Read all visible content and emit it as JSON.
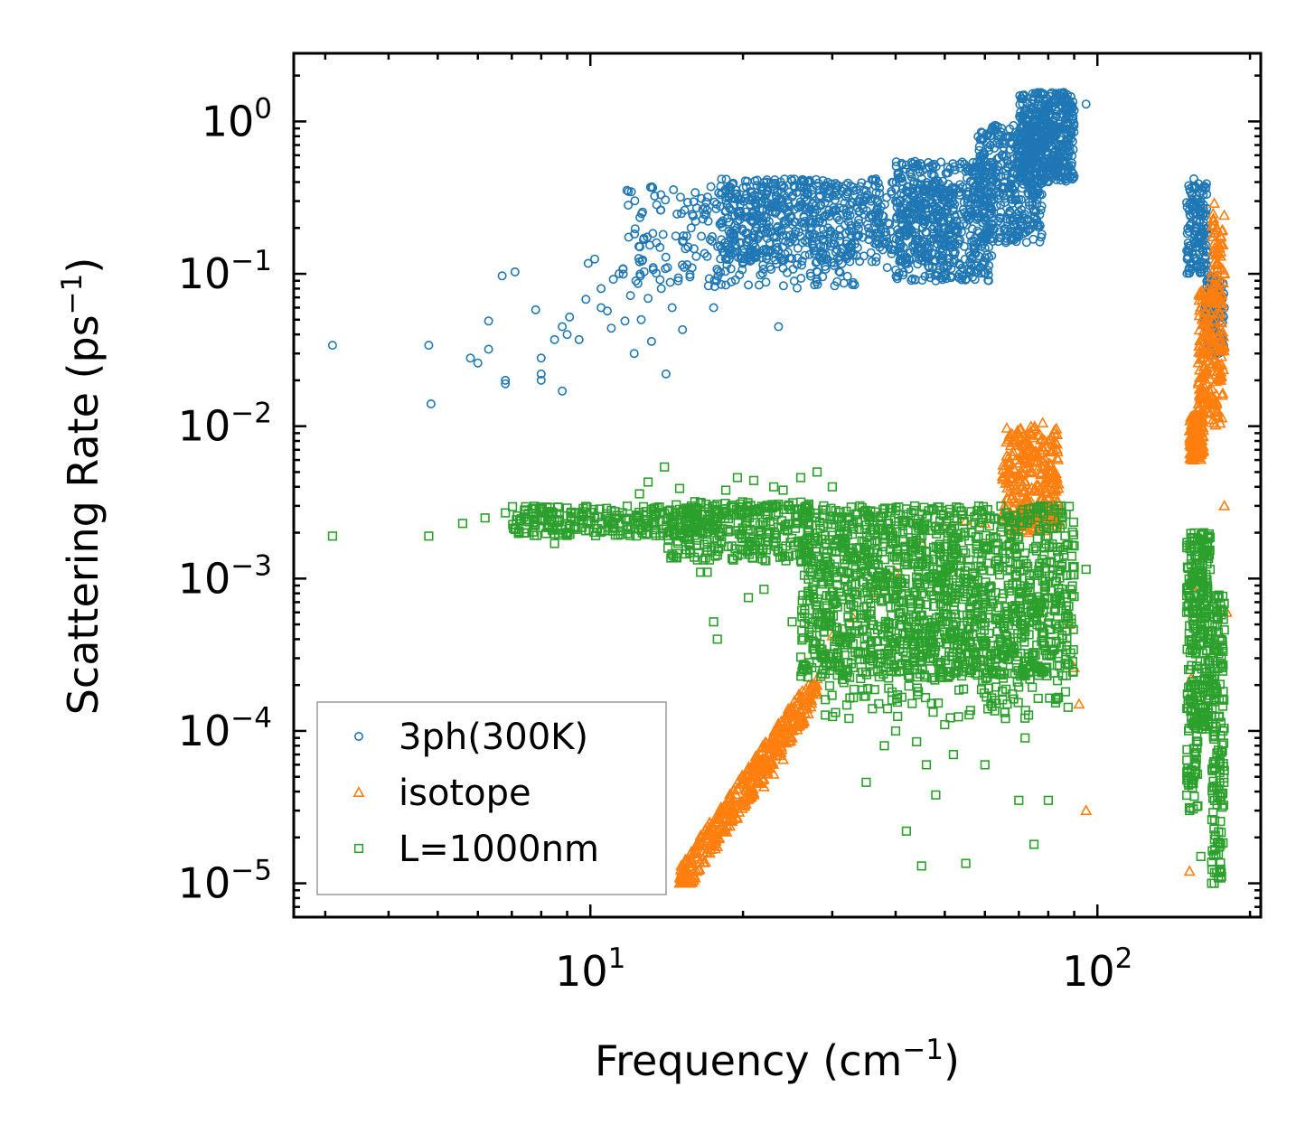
{
  "chart_data": {
    "type": "scatter",
    "title": "",
    "xlabel": "Frequency (cm",
    "xlabel_sup": "−1",
    "xlabel_close": ")",
    "ylabel": "Scattering Rate (ps",
    "ylabel_sup": "−1",
    "ylabel_close": ")",
    "xscale": "log",
    "yscale": "log",
    "xlim": [
      2.6,
      210
    ],
    "ylim": [
      6e-06,
      2.8
    ],
    "x_ticks": [
      {
        "value": 10,
        "base": "10",
        "exp": "1"
      },
      {
        "value": 100,
        "base": "10",
        "exp": "2"
      }
    ],
    "y_ticks": [
      {
        "value": 1,
        "base": "10",
        "exp": "0"
      },
      {
        "value": 0.1,
        "base": "10",
        "exp": "−1"
      },
      {
        "value": 0.01,
        "base": "10",
        "exp": "−2"
      },
      {
        "value": 0.001,
        "base": "10",
        "exp": "−3"
      },
      {
        "value": 0.0001,
        "base": "10",
        "exp": "−4"
      },
      {
        "value": 1e-05,
        "base": "10",
        "exp": "−5"
      }
    ],
    "legend_position": "bottom-left",
    "series": [
      {
        "name": "3ph(300K)",
        "marker": "circle",
        "color": "#1f77b4",
        "points": [
          [
            3.1,
            0.034
          ],
          [
            4.8,
            0.034
          ],
          [
            4.85,
            0.014
          ],
          [
            5.8,
            0.028
          ],
          [
            6.0,
            0.026
          ],
          [
            6.3,
            0.049
          ],
          [
            6.3,
            0.032
          ],
          [
            6.7,
            0.097
          ],
          [
            6.8,
            0.02
          ],
          [
            6.8,
            0.019
          ],
          [
            7.1,
            0.103
          ],
          [
            7.8,
            0.058
          ],
          [
            8.0,
            0.028
          ],
          [
            8.0,
            0.022
          ],
          [
            8.0,
            0.02
          ],
          [
            8.5,
            0.037
          ],
          [
            8.8,
            0.017
          ],
          [
            8.8,
            0.045
          ],
          [
            9.0,
            0.04
          ],
          [
            9.1,
            0.052
          ],
          [
            9.5,
            0.037
          ],
          [
            9.8,
            0.068
          ],
          [
            9.9,
            0.117
          ],
          [
            10.2,
            0.125
          ],
          [
            10.5,
            0.08
          ],
          [
            10.5,
            0.06
          ],
          [
            10.8,
            0.057
          ],
          [
            11.0,
            0.044
          ],
          [
            11.1,
            0.092
          ],
          [
            11.4,
            0.1
          ],
          [
            11.6,
            0.108
          ],
          [
            11.7,
            0.049
          ],
          [
            11.9,
            0.174
          ],
          [
            12.0,
            0.072
          ],
          [
            12.2,
            0.03
          ],
          [
            12.3,
            0.09
          ],
          [
            12.5,
            0.12
          ],
          [
            12.6,
            0.05
          ],
          [
            13.0,
            0.069
          ],
          [
            13.1,
            0.154
          ],
          [
            13.2,
            0.036
          ],
          [
            13.3,
            0.11
          ],
          [
            13.5,
            0.16
          ],
          [
            13.8,
            0.08
          ],
          [
            14.1,
            0.022
          ],
          [
            14.2,
            0.11
          ],
          [
            14.5,
            0.06
          ],
          [
            14.9,
            0.09
          ],
          [
            15.2,
            0.043
          ],
          [
            15.8,
            0.2
          ],
          [
            17.0,
            0.13
          ],
          [
            17.5,
            0.06
          ],
          [
            18.5,
            0.26
          ],
          [
            20.0,
            0.12
          ],
          [
            21.5,
            0.3
          ],
          [
            23.0,
            0.36
          ],
          [
            23.5,
            0.045
          ],
          [
            25.0,
            0.32
          ],
          [
            27.0,
            0.4
          ],
          [
            28.0,
            0.12
          ],
          [
            29.0,
            0.36
          ],
          [
            31.0,
            0.27
          ],
          [
            33.0,
            0.37
          ],
          [
            35.0,
            0.35
          ],
          [
            37.0,
            0.24
          ],
          [
            38.5,
            0.11
          ],
          [
            40.0,
            0.3
          ],
          [
            42.0,
            0.26
          ],
          [
            43.5,
            0.5
          ],
          [
            46.0,
            0.38
          ],
          [
            48.0,
            0.09
          ],
          [
            50.0,
            0.34
          ],
          [
            52.0,
            0.27
          ],
          [
            55.0,
            0.47
          ],
          [
            58.0,
            0.29
          ],
          [
            62.0,
            0.52
          ],
          [
            66.0,
            0.44
          ],
          [
            70.0,
            0.66
          ],
          [
            75.0,
            0.92
          ],
          [
            80.0,
            1.25
          ],
          [
            83.0,
            1.52
          ],
          [
            86.0,
            1.38
          ],
          [
            90.0,
            1.18
          ],
          [
            95.0,
            1.3
          ],
          [
            152.0,
            0.36
          ],
          [
            155.0,
            0.42
          ],
          [
            160.0,
            0.3
          ],
          [
            165.0,
            0.14
          ],
          [
            170.0,
            0.07
          ],
          [
            175.0,
            0.04
          ],
          [
            178.0,
            0.06
          ]
        ],
        "dense_regions": [
          {
            "x": [
              11.5,
              34
            ],
            "y": [
              0.08,
              0.38
            ],
            "n": 260
          },
          {
            "x": [
              18,
              50
            ],
            "y": [
              0.12,
              0.42
            ],
            "n": 650
          },
          {
            "x": [
              40,
              62
            ],
            "y": [
              0.09,
              0.55
            ],
            "n": 480
          },
          {
            "x": [
              58,
              78
            ],
            "y": [
              0.16,
              0.95
            ],
            "n": 380
          },
          {
            "x": [
              70,
              90
            ],
            "y": [
              0.4,
              1.55
            ],
            "n": 500
          },
          {
            "x": [
              150,
              165
            ],
            "y": [
              0.1,
              0.4
            ],
            "n": 150
          },
          {
            "x": [
              162,
              178
            ],
            "y": [
              0.03,
              0.1
            ],
            "n": 130
          }
        ]
      },
      {
        "name": "isotope",
        "marker": "triangle",
        "color": "#ff7f0e",
        "points": [
          [
            15.0,
            1e-05
          ],
          [
            16.0,
            1.1e-05
          ],
          [
            17.0,
            1.6e-05
          ],
          [
            18.0,
            2.3e-05
          ],
          [
            19.0,
            2.8e-05
          ],
          [
            20.0,
            3.4e-05
          ],
          [
            21.0,
            3.8e-05
          ],
          [
            22.0,
            4.3e-05
          ],
          [
            23.0,
            5.2e-05
          ],
          [
            24.0,
            6.5e-05
          ],
          [
            25.0,
            9e-05
          ],
          [
            26.0,
            0.00012
          ],
          [
            27.0,
            0.00016
          ],
          [
            28.0,
            0.00022
          ],
          [
            29.0,
            0.00033
          ],
          [
            30.0,
            0.00042
          ],
          [
            33.0,
            0.00055
          ],
          [
            36.0,
            0.0008
          ],
          [
            40.0,
            0.0011
          ],
          [
            45.0,
            0.0017
          ],
          [
            50.0,
            0.0022
          ],
          [
            55.0,
            0.0024
          ],
          [
            60.0,
            0.0023
          ],
          [
            65.0,
            0.0026
          ],
          [
            68.0,
            0.0035
          ],
          [
            70.0,
            0.0045
          ],
          [
            72.0,
            0.0038
          ],
          [
            75.0,
            0.0065
          ],
          [
            78.0,
            0.0105
          ],
          [
            80.0,
            0.008
          ],
          [
            82.0,
            0.0036
          ],
          [
            85.0,
            0.0028
          ],
          [
            88.0,
            0.0005
          ],
          [
            90.0,
            0.00026
          ],
          [
            92.0,
            0.00015
          ],
          [
            95.0,
            3e-05
          ],
          [
            152.0,
            1.2e-05
          ],
          [
            153.0,
            0.00022
          ],
          [
            154.0,
            0.0009
          ],
          [
            155.0,
            0.006
          ],
          [
            158.0,
            0.008
          ],
          [
            160.0,
            0.015
          ],
          [
            165.0,
            0.08
          ],
          [
            170.0,
            0.29
          ],
          [
            172.0,
            0.2
          ],
          [
            175.0,
            0.02
          ],
          [
            178.0,
            0.003
          ],
          [
            180.0,
            0.0006
          ]
        ],
        "dense_regions": [
          {
            "x": [
              15,
              28
            ],
            "y": [
              1e-05,
              0.0002
            ],
            "n": 420,
            "band": true
          },
          {
            "x": [
              65,
              84
            ],
            "y": [
              0.002,
              0.01
            ],
            "n": 300
          },
          {
            "x": [
              152,
              162
            ],
            "y": [
              0.006,
              0.012
            ],
            "n": 120
          },
          {
            "x": [
              158,
              168
            ],
            "y": [
              0.012,
              0.08
            ],
            "n": 120
          },
          {
            "x": [
              168,
              178
            ],
            "y": [
              0.01,
              0.25
            ],
            "n": 140
          }
        ]
      },
      {
        "name": "L=1000nm",
        "marker": "square",
        "color": "#2ca02c",
        "points": [
          [
            3.1,
            0.0019
          ],
          [
            4.8,
            0.0019
          ],
          [
            5.6,
            0.0023
          ],
          [
            6.2,
            0.0025
          ],
          [
            6.8,
            0.0027
          ],
          [
            7.1,
            0.0021
          ],
          [
            7.5,
            0.002
          ],
          [
            8.0,
            0.0024
          ],
          [
            8.5,
            0.0017
          ],
          [
            9.0,
            0.0029
          ],
          [
            9.6,
            0.0026
          ],
          [
            10.2,
            0.0025
          ],
          [
            11.0,
            0.0028
          ],
          [
            11.8,
            0.0022
          ],
          [
            12.5,
            0.0036
          ],
          [
            13.0,
            0.0043
          ],
          [
            14.0,
            0.0054
          ],
          [
            15.0,
            0.0039
          ],
          [
            16.0,
            0.0029
          ],
          [
            16.5,
            0.0011
          ],
          [
            17.0,
            0.0011
          ],
          [
            17.5,
            0.00052
          ],
          [
            17.8,
            0.0004
          ],
          [
            18.5,
            0.0038
          ],
          [
            19.5,
            0.0046
          ],
          [
            20.5,
            0.00075
          ],
          [
            21.0,
            0.0044
          ],
          [
            22.0,
            0.00085
          ],
          [
            23.0,
            0.004
          ],
          [
            24.0,
            0.0038
          ],
          [
            25.0,
            0.00052
          ],
          [
            26.0,
            0.0046
          ],
          [
            27.0,
            0.00048
          ],
          [
            28.0,
            0.005
          ],
          [
            30.0,
            0.004
          ],
          [
            32.0,
            0.00023
          ],
          [
            34.0,
            0.003
          ],
          [
            35.0,
            4.6e-05
          ],
          [
            36.0,
            0.00014
          ],
          [
            38.0,
            8e-05
          ],
          [
            40.0,
            0.0001
          ],
          [
            42.0,
            2.2e-05
          ],
          [
            44.0,
            8.5e-05
          ],
          [
            45.0,
            1.3e-05
          ],
          [
            46.0,
            6e-05
          ],
          [
            48.0,
            3.8e-05
          ],
          [
            50.0,
            0.00011
          ],
          [
            52.0,
            7e-05
          ],
          [
            55.0,
            1.35e-05
          ],
          [
            58.0,
            0.0028
          ],
          [
            60.0,
            6e-05
          ],
          [
            65.0,
            0.00016
          ],
          [
            70.0,
            3.5e-05
          ],
          [
            72.0,
            9e-05
          ],
          [
            75.0,
            1.8e-05
          ],
          [
            80.0,
            3.5e-05
          ],
          [
            85.0,
            0.0012
          ],
          [
            90.0,
            0.0012
          ],
          [
            95.0,
            0.00115
          ],
          [
            150.0,
            0.0006
          ],
          [
            152.0,
            3e-05
          ],
          [
            155.0,
            0.00015
          ],
          [
            158.0,
            0.0011
          ],
          [
            160.0,
            1.5e-05
          ],
          [
            162.0,
            0.002
          ],
          [
            165.0,
            0.0019
          ],
          [
            168.0,
            1e-05
          ],
          [
            170.0,
            1e-05
          ],
          [
            172.0,
            0.0006
          ],
          [
            175.0,
            1.8e-05
          ],
          [
            178.0,
            5.5e-05
          ]
        ],
        "dense_regions": [
          {
            "x": [
              7,
              18
            ],
            "y": [
              0.0019,
              0.003
            ],
            "n": 260
          },
          {
            "x": [
              14,
              27
            ],
            "y": [
              0.0013,
              0.0032
            ],
            "n": 300
          },
          {
            "x": [
              26,
              90
            ],
            "y": [
              0.00022,
              0.003
            ],
            "n": 1500
          },
          {
            "x": [
              28,
              88
            ],
            "y": [
              0.00012,
              0.0006
            ],
            "n": 220
          },
          {
            "x": [
              150,
              158
            ],
            "y": [
              3e-05,
              0.002
            ],
            "n": 170
          },
          {
            "x": [
              159,
              167
            ],
            "y": [
              0.0001,
              0.002
            ],
            "n": 150
          },
          {
            "x": [
              168,
              178
            ],
            "y": [
              1e-05,
              0.0008
            ],
            "n": 160
          }
        ]
      }
    ]
  }
}
